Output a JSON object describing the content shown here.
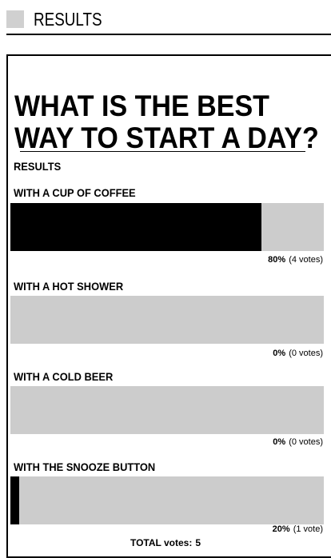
{
  "section": {
    "title": "RESULTS"
  },
  "poll": {
    "question_line1": "WHAT IS THE BEST",
    "question_line2": "WAY TO START A DAY?",
    "results_label": "RESULTS",
    "options": [
      {
        "label": "WITH A CUP OF COFFEE",
        "percent": 80,
        "percent_text": "80%",
        "votes_text": "(4 votes)"
      },
      {
        "label": "WITH A HOT SHOWER",
        "percent": 0,
        "percent_text": "0%",
        "votes_text": "(0 votes)"
      },
      {
        "label": "WITH A COLD BEER",
        "percent": 0,
        "percent_text": "0%",
        "votes_text": "(0 votes)"
      },
      {
        "label": "WITH THE SNOOZE BUTTON",
        "percent": 20,
        "percent_text": "20%",
        "votes_text": "(1 vote)"
      }
    ],
    "total_label": "TOTAL votes:",
    "total_value": "5"
  },
  "colors": {
    "bar_fill": "#000000",
    "bar_track": "#cccccc",
    "text": "#000000"
  }
}
